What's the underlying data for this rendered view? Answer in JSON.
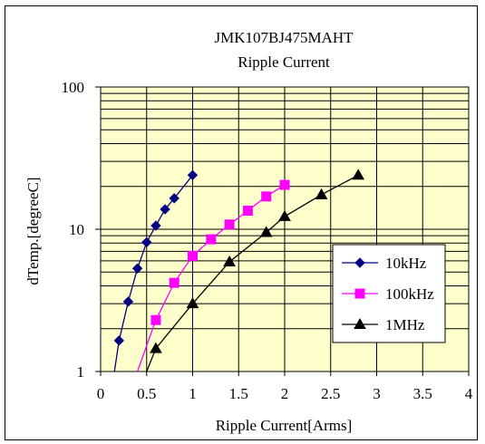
{
  "chart_data": {
    "type": "line",
    "title": "JMK107BJ475MAHT",
    "subtitle": "Ripple Current",
    "xlabel": "Ripple Current[Arms]",
    "ylabel": "dTemp.[degreeC]",
    "xlim": [
      0,
      4
    ],
    "ylim": [
      1,
      100
    ],
    "y_scale": "log",
    "x_ticks": [
      "0",
      "0.5",
      "1",
      "1.5",
      "2",
      "2.5",
      "3",
      "3.5",
      "4"
    ],
    "y_ticks": [
      "1",
      "10",
      "100"
    ],
    "grid": true,
    "legend_position": "bottom-right",
    "plot_background": "#ffffcc",
    "series": [
      {
        "name": "10kHz",
        "color": "#000080",
        "marker": "diamond",
        "points": [
          [
            0.15,
            1.0
          ],
          [
            0.2,
            1.65
          ],
          [
            0.3,
            3.1
          ],
          [
            0.4,
            5.3
          ],
          [
            0.5,
            8.1
          ],
          [
            0.6,
            10.6
          ],
          [
            0.7,
            13.8
          ],
          [
            0.8,
            16.5
          ],
          [
            1.0,
            24.0
          ]
        ]
      },
      {
        "name": "100kHz",
        "color": "#ff00ff",
        "marker": "square",
        "points": [
          [
            0.4,
            1.0
          ],
          [
            0.6,
            2.3
          ],
          [
            0.8,
            4.2
          ],
          [
            1.0,
            6.5
          ],
          [
            1.2,
            8.5
          ],
          [
            1.4,
            10.8
          ],
          [
            1.6,
            13.5
          ],
          [
            1.8,
            17.0
          ],
          [
            2.0,
            20.5
          ]
        ]
      },
      {
        "name": "1MHz",
        "color": "#000000",
        "marker": "triangle",
        "points": [
          [
            0.5,
            1.0
          ],
          [
            0.6,
            1.45
          ],
          [
            1.0,
            3.0
          ],
          [
            1.4,
            5.9
          ],
          [
            1.8,
            9.5
          ],
          [
            2.0,
            12.3
          ],
          [
            2.4,
            17.5
          ],
          [
            2.8,
            24.0
          ]
        ]
      }
    ]
  }
}
